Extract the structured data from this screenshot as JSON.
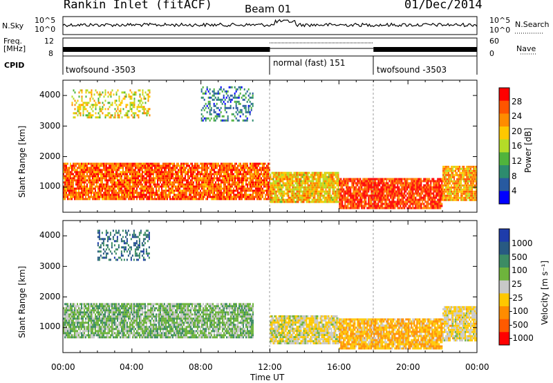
{
  "header": {
    "title": "Rankin Inlet (fitACF)",
    "beam": "Beam 01",
    "date": "01/Dec/2014"
  },
  "strip": {
    "nsky_label": "N.Sky",
    "nsky_ticks": [
      "10^5",
      "10^0"
    ],
    "nsearch_label": "N.Search",
    "nsearch_ticks": [
      "10^5",
      "10^0"
    ],
    "freq_label_line1": "Freq.",
    "freq_label_line2": "[MHz]",
    "freq_ticks": [
      "12",
      "8"
    ],
    "nave_label": "Nave",
    "nave_ticks": [
      "60",
      "0"
    ],
    "cpid_label": "CPID",
    "cpid_segments": [
      {
        "label": "twofsound -3503",
        "start_h": 0,
        "end_h": 12
      },
      {
        "label": "normal (fast) 151",
        "start_h": 12,
        "end_h": 18
      },
      {
        "label": "twofsound -3503",
        "start_h": 18,
        "end_h": 24
      }
    ]
  },
  "axes": {
    "ylabel": "Slant Range [km]",
    "xlabel": "Time UT",
    "x_ticks": [
      "00:00",
      "04:00",
      "08:00",
      "12:00",
      "16:00",
      "20:00",
      "00:00"
    ],
    "y_ticks": [
      "1000",
      "2000",
      "3000",
      "4000"
    ]
  },
  "colorbars": {
    "power": {
      "label": "Power [dB]",
      "ticks": [
        "28",
        "24",
        "20",
        "16",
        "12",
        "8",
        "4"
      ],
      "colors": [
        "#ff0000",
        "#ff5500",
        "#ff8c00",
        "#ffc800",
        "#b4dc28",
        "#50b43c",
        "#2d8c6e",
        "#285aa0",
        "#0000ff"
      ]
    },
    "velocity": {
      "label": "Velocity [m s⁻¹]",
      "ticks": [
        "1000",
        "500",
        "100",
        "25",
        "-25",
        "-100",
        "-500",
        "-1000"
      ],
      "colors": [
        "#1e3caa",
        "#285a82",
        "#3c8c64",
        "#6eb43c",
        "#c8c8c8",
        "#ffc800",
        "#ff8c00",
        "#ff5a00",
        "#ff0000"
      ]
    }
  },
  "chart_data": [
    {
      "type": "heatmap",
      "title": "Rankin Inlet (fitACF)",
      "xlabel": "Time UT",
      "ylabel": "Slant Range [km]",
      "xlim": [
        0,
        24
      ],
      "ylim": [
        180,
        4500
      ],
      "colorbar": "Power [dB]",
      "clim": [
        0,
        32
      ],
      "regions": [
        {
          "t": [
            0,
            12
          ],
          "range_km": [
            600,
            1800
          ],
          "value_db": 26
        },
        {
          "t": [
            12,
            16
          ],
          "range_km": [
            500,
            1500
          ],
          "value_db": 20
        },
        {
          "t": [
            16,
            22
          ],
          "range_km": [
            300,
            1300
          ],
          "value_db": 28
        },
        {
          "t": [
            22,
            24
          ],
          "range_km": [
            600,
            1700
          ],
          "value_db": 22
        },
        {
          "t": [
            0.5,
            5
          ],
          "range_km": [
            3300,
            4200
          ],
          "value_db": 18
        },
        {
          "t": [
            8,
            11
          ],
          "range_km": [
            3200,
            4300
          ],
          "value_db": 8
        }
      ]
    },
    {
      "type": "heatmap",
      "title": "Rankin Inlet (fitACF)",
      "xlabel": "Time UT",
      "ylabel": "Slant Range [km]",
      "xlim": [
        0,
        24
      ],
      "ylim": [
        180,
        4500
      ],
      "colorbar": "Velocity [m s⁻¹]",
      "clim": [
        -1000,
        1000
      ],
      "regions": [
        {
          "t": [
            0,
            11
          ],
          "range_km": [
            700,
            1800
          ],
          "value_ms": 200
        },
        {
          "t": [
            12,
            16
          ],
          "range_km": [
            500,
            1400
          ],
          "value_ms": -60
        },
        {
          "t": [
            16,
            22
          ],
          "range_km": [
            300,
            1300
          ],
          "value_ms": -300
        },
        {
          "t": [
            22,
            24
          ],
          "range_km": [
            600,
            1700
          ],
          "value_ms": -100
        },
        {
          "t": [
            2,
            5
          ],
          "range_km": [
            3200,
            4200
          ],
          "value_ms": 600
        }
      ]
    }
  ]
}
